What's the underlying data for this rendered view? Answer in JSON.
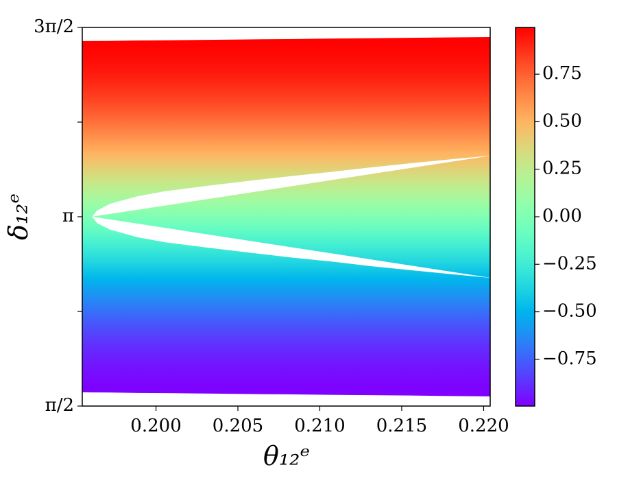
{
  "chart_data": {
    "type": "region",
    "xlabel": "θ₁₂ᵉ",
    "ylabel": "δ₁₂ᵉ",
    "x": [
      0.1955,
      0.1961,
      0.1964,
      0.1972,
      0.1989,
      0.2005,
      0.2031,
      0.2056,
      0.2081,
      0.2106,
      0.2131,
      0.2156,
      0.2181,
      0.2204
    ],
    "series": [
      {
        "name": "upper",
        "values": [
          4.599,
          4.6,
          4.6,
          4.601,
          4.604,
          4.606,
          4.609,
          4.613,
          4.616,
          4.62,
          4.623,
          4.626,
          4.63,
          4.633
        ]
      },
      {
        "name": "lower",
        "values": [
          1.685,
          1.684,
          1.684,
          1.683,
          1.68,
          1.678,
          1.675,
          1.671,
          1.668,
          1.664,
          1.661,
          1.658,
          1.654,
          1.651
        ]
      },
      {
        "name": "gap-upper",
        "values": [
          null,
          3.142,
          3.193,
          3.25,
          3.312,
          3.352,
          3.398,
          3.438,
          3.477,
          3.512,
          3.551,
          3.586,
          3.62,
          3.648
        ]
      },
      {
        "name": "gap-lower",
        "values": [
          null,
          3.142,
          3.09,
          3.034,
          2.971,
          2.931,
          2.886,
          2.846,
          2.806,
          2.772,
          2.732,
          2.698,
          2.664,
          2.635
        ]
      }
    ],
    "xlim": [
      0.1955,
      0.2204
    ],
    "xticks": [
      {
        "value": 0.2,
        "label": "0.200"
      },
      0.205,
      {
        "value": 0.21,
        "label": "0.210"
      },
      0.215,
      {
        "value": 0.22,
        "label": "0.220"
      }
    ],
    "ylim": [
      1.5708,
      4.7124
    ],
    "yticks": [
      {
        "value": 1.5708,
        "label": "π/2"
      },
      {
        "value": 2.3562,
        "label": null
      },
      {
        "value": 3.1416,
        "label": "π"
      },
      {
        "value": 3.927,
        "label": null
      },
      {
        "value": 4.7124,
        "label": "3π/2"
      }
    ],
    "colormap": "rainbow",
    "colorbar": {
      "lim": [
        -0.996,
        0.996
      ],
      "ticks": [
        {
          "value": -0.75,
          "label": "−0.75"
        },
        {
          "value": -0.5,
          "label": "−0.50"
        },
        {
          "value": -0.25,
          "label": "−0.25"
        },
        {
          "value": 0,
          "label": "0.00"
        },
        0.25,
        {
          "value": 0.5,
          "label": "0.50"
        },
        0.75
      ]
    }
  }
}
